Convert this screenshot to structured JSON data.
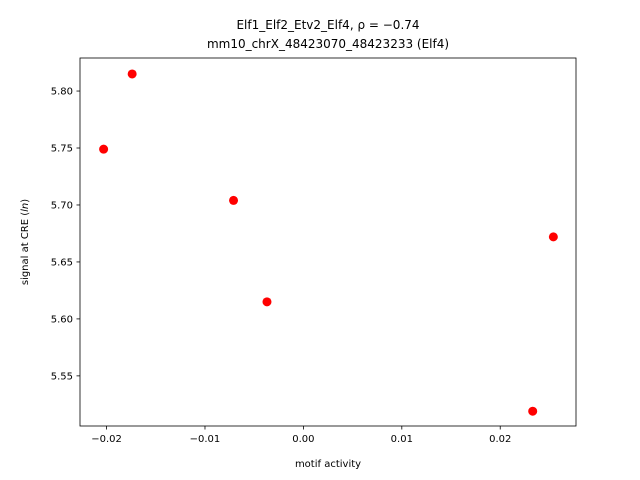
{
  "chart_data": {
    "type": "scatter",
    "title_line1": "Elf1_Elf2_Etv2_Elf4, ",
    "title_rho": "ρ = −0.74",
    "title_line2": "mm10_chrX_48423070_48423233 (Elf4)",
    "xlabel": "motif activity",
    "ylabel_prefix": "signal at CRE (",
    "ylabel_italic": "ln",
    "ylabel_suffix": ")",
    "xlim": [
      -0.0227,
      0.0277
    ],
    "ylim": [
      5.506,
      5.829
    ],
    "xticks": [
      -0.02,
      -0.01,
      0.0,
      0.01,
      0.02
    ],
    "xtick_labels": [
      "−0.02",
      "−0.01",
      "0.00",
      "0.01",
      "0.02"
    ],
    "yticks": [
      5.55,
      5.6,
      5.65,
      5.7,
      5.75,
      5.8
    ],
    "ytick_labels": [
      "5.55",
      "5.60",
      "5.65",
      "5.70",
      "5.75",
      "5.80"
    ],
    "grid": false,
    "marker_color": "#ff0000",
    "points": [
      {
        "x": -0.0203,
        "y": 5.749
      },
      {
        "x": -0.0174,
        "y": 5.815
      },
      {
        "x": -0.0071,
        "y": 5.704
      },
      {
        "x": -0.0037,
        "y": 5.615
      },
      {
        "x": 0.0233,
        "y": 5.519
      },
      {
        "x": 0.0254,
        "y": 5.672
      }
    ]
  }
}
